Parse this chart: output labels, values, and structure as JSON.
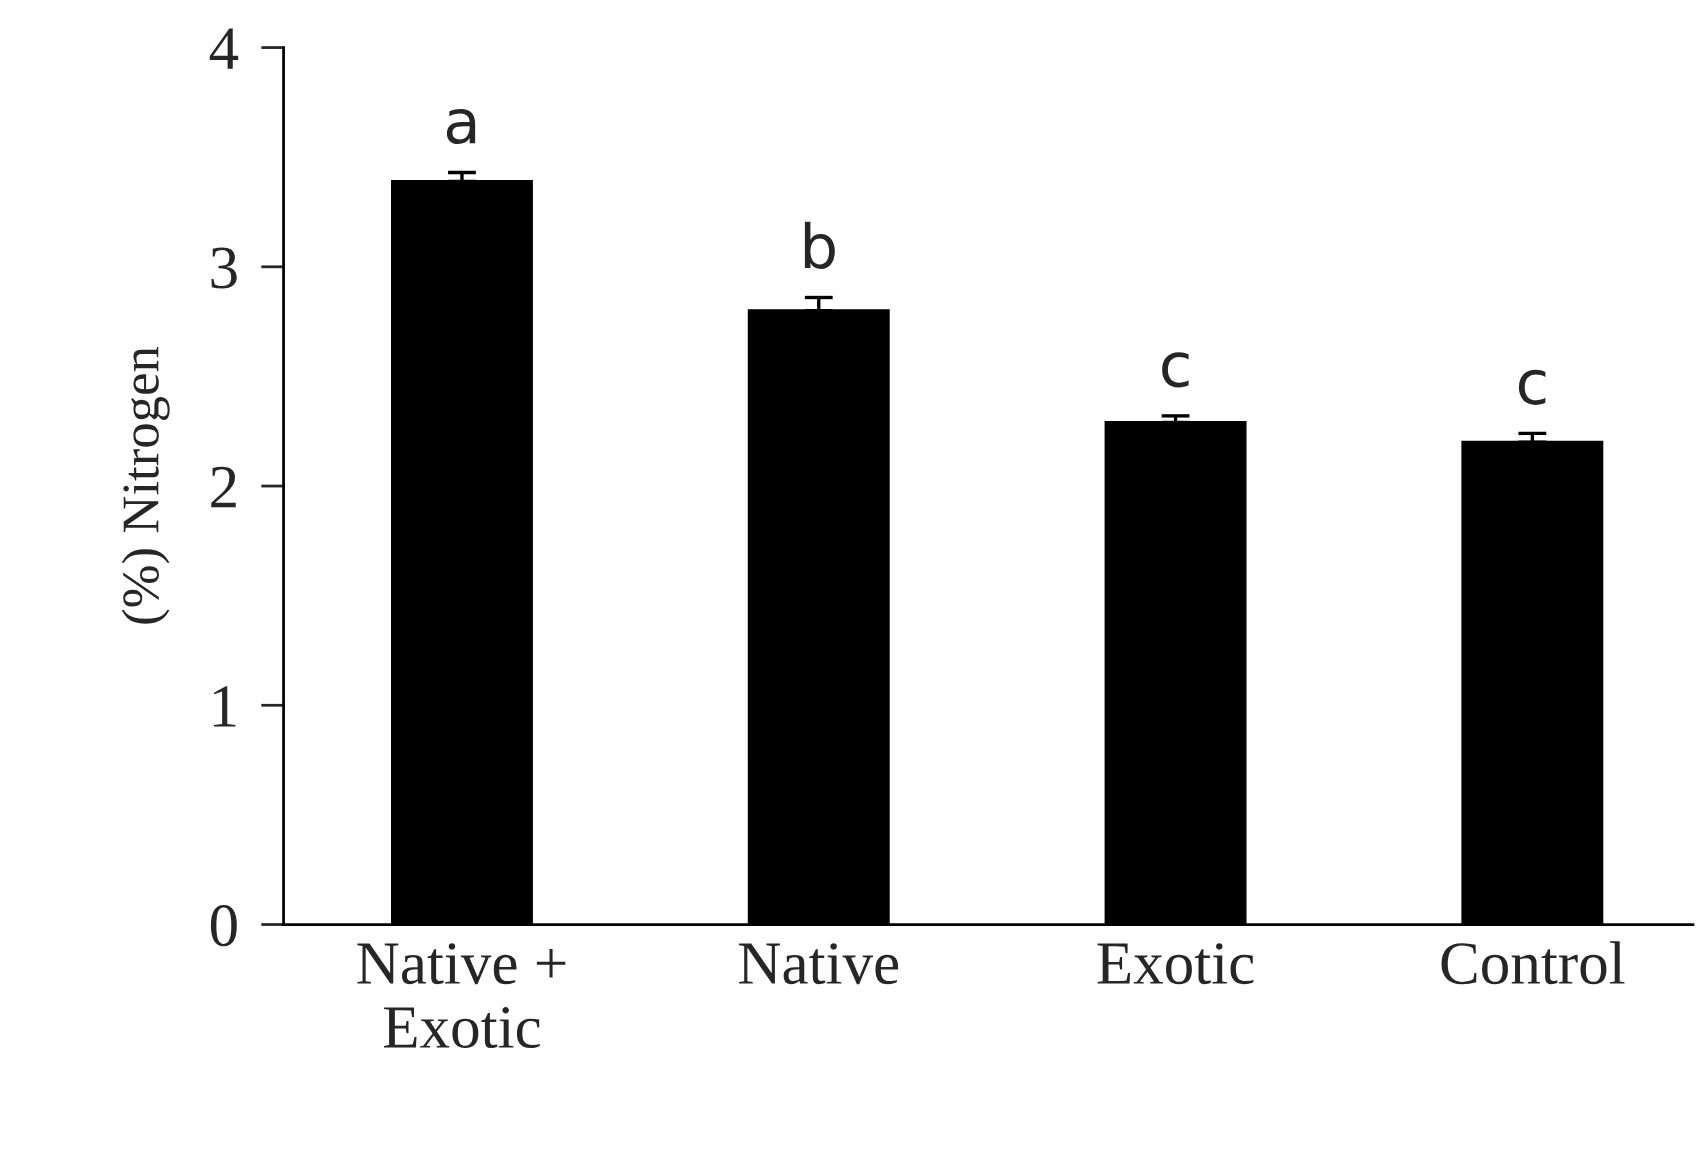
{
  "chart_data": {
    "type": "bar",
    "categories": [
      "Native +\nExotic",
      "Native",
      "Exotic",
      "Control"
    ],
    "values": [
      3.39,
      2.8,
      2.29,
      2.2
    ],
    "errors": [
      [
        3.39,
        3.43
      ],
      [
        2.8,
        2.86
      ],
      [
        2.29,
        2.32
      ],
      [
        2.2,
        2.24
      ]
    ],
    "color": "#000000",
    "ylabel": "(%) Nitrogen",
    "ylim": [
      0,
      4
    ],
    "yticks": [
      0,
      1,
      2,
      3,
      4
    ],
    "grid": false,
    "legend": false,
    "annotations": [
      {
        "text": "a",
        "x": "Native +\nExotic",
        "y": 3.43
      },
      {
        "text": "b",
        "x": "Native",
        "y": 2.86
      },
      {
        "text": "c",
        "x": "Exotic",
        "y": 2.32
      },
      {
        "text": "c",
        "x": "Control",
        "y": 2.24
      }
    ]
  }
}
